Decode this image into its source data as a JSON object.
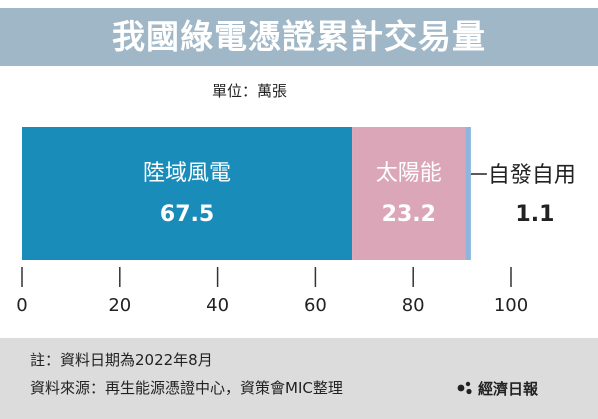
{
  "header": {
    "title": "我國綠電憑證累計交易量",
    "unit_label": "單位：萬張"
  },
  "chart_data": {
    "type": "bar",
    "orientation": "horizontal-stacked",
    "title": "我國綠電憑證累計交易量",
    "unit": "萬張",
    "xlim": [
      0,
      100
    ],
    "x_ticks": [
      0,
      20,
      40,
      60,
      80,
      100
    ],
    "grid": false,
    "legend": "none",
    "series": [
      {
        "name": "陸域風電",
        "value": 67.5,
        "value_label": "67.5",
        "color": "#1a8cba"
      },
      {
        "name": "太陽能",
        "value": 23.2,
        "value_label": "23.2",
        "color": "#dba7b8"
      },
      {
        "name": "自發自用",
        "value": 1.1,
        "value_label": "1.1",
        "color": "#8eb6dd"
      }
    ]
  },
  "footer": {
    "note": "註：資料日期為2022年8月",
    "source": "資料來源：再生能源憑證中心，資策會MIC整理",
    "brand": "經濟日報"
  }
}
